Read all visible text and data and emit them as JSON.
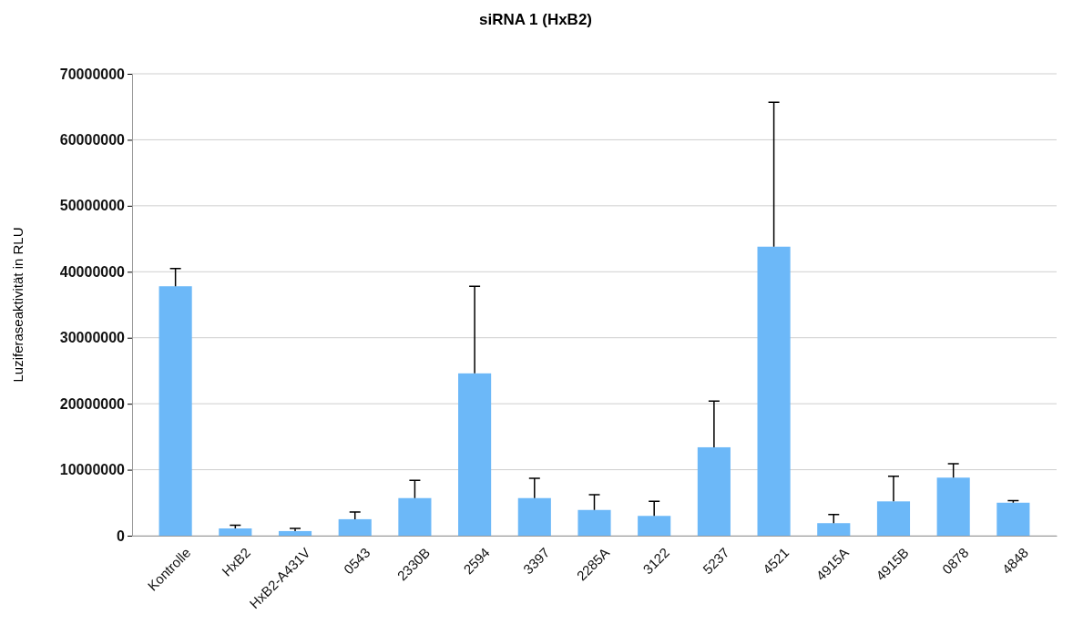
{
  "chart_data": {
    "type": "bar",
    "title": "siRNA 1 (HxB2)",
    "ylabel": "Luziferaseaktivität in RLU",
    "categories": [
      "Kontrolle",
      "HxB2",
      "HxB2-A431V",
      "0543",
      "2330B",
      "2594",
      "3397",
      "2285A",
      "3122",
      "5237",
      "4521",
      "4915A",
      "4915B",
      "0878",
      "4848"
    ],
    "values": [
      37800000,
      1100000,
      700000,
      2500000,
      5700000,
      24600000,
      5700000,
      3900000,
      3000000,
      13400000,
      43800000,
      1900000,
      5200000,
      8800000,
      5000000
    ],
    "errors": [
      [
        37800000,
        40500000
      ],
      [
        1100000,
        1600000
      ],
      [
        700000,
        1100000
      ],
      [
        2500000,
        3600000
      ],
      [
        5700000,
        8400000
      ],
      [
        24600000,
        37800000
      ],
      [
        5700000,
        8700000
      ],
      [
        3900000,
        6200000
      ],
      [
        3000000,
        5200000
      ],
      [
        13400000,
        20400000
      ],
      [
        43800000,
        65700000
      ],
      [
        1900000,
        3200000
      ],
      [
        5200000,
        9000000
      ],
      [
        8800000,
        10900000
      ],
      [
        5000000,
        5300000
      ]
    ],
    "color": "#6cb8f8",
    "ylim": [
      0,
      70000000
    ],
    "yticks": [
      0,
      10000000,
      20000000,
      30000000,
      40000000,
      50000000,
      60000000,
      70000000
    ],
    "grid": "y"
  }
}
